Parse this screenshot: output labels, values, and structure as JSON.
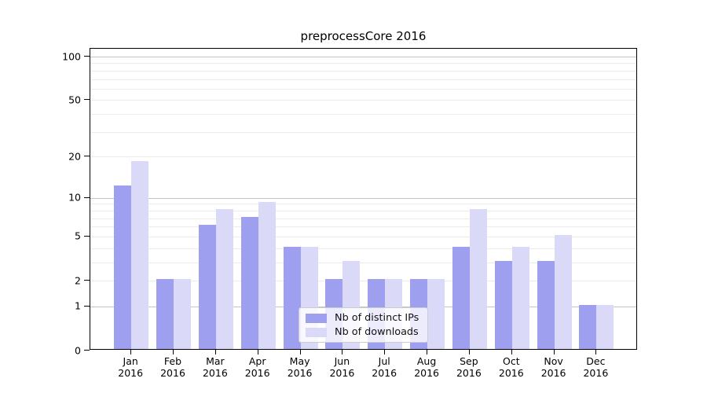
{
  "title": "preprocessCore 2016",
  "legend": {
    "items": [
      {
        "label": "Nb of distinct IPs",
        "color": "#9f9ff0"
      },
      {
        "label": "Nb of downloads",
        "color": "#dadaf8"
      }
    ]
  },
  "chart_data": {
    "type": "bar",
    "title": "preprocessCore 2016",
    "categories": [
      "Jan 2016",
      "Feb 2016",
      "Mar 2016",
      "Apr 2016",
      "May 2016",
      "Jun 2016",
      "Jul 2016",
      "Aug 2016",
      "Sep 2016",
      "Oct 2016",
      "Nov 2016",
      "Dec 2016"
    ],
    "month_labels": [
      "Jan",
      "Feb",
      "Mar",
      "Apr",
      "May",
      "Jun",
      "Jul",
      "Aug",
      "Sep",
      "Oct",
      "Nov",
      "Dec"
    ],
    "year_label": "2016",
    "series": [
      {
        "name": "Nb of distinct IPs",
        "color": "#9f9ff0",
        "values": [
          12,
          2,
          6,
          7,
          4,
          2,
          2,
          2,
          4,
          3,
          3,
          1
        ]
      },
      {
        "name": "Nb of downloads",
        "color": "#dadaf8",
        "values": [
          18,
          2,
          8,
          9,
          4,
          3,
          2,
          2,
          8,
          4,
          5,
          1
        ]
      }
    ],
    "xlabel": "",
    "ylabel": "",
    "yscale": "log1p",
    "ylim_top": 113,
    "y_ticks": [
      0,
      1,
      2,
      5,
      10,
      20,
      50,
      100
    ],
    "y_tick_labels": [
      "0",
      "1",
      "2",
      "5",
      "10",
      "20",
      "50",
      "100"
    ],
    "major_gridlines": [
      1,
      10,
      100
    ],
    "minor_gridlines": [
      2,
      3,
      4,
      5,
      6,
      7,
      8,
      9,
      20,
      30,
      40,
      50,
      60,
      70,
      80,
      90
    ],
    "grid": true,
    "legend_position": "lower center"
  }
}
